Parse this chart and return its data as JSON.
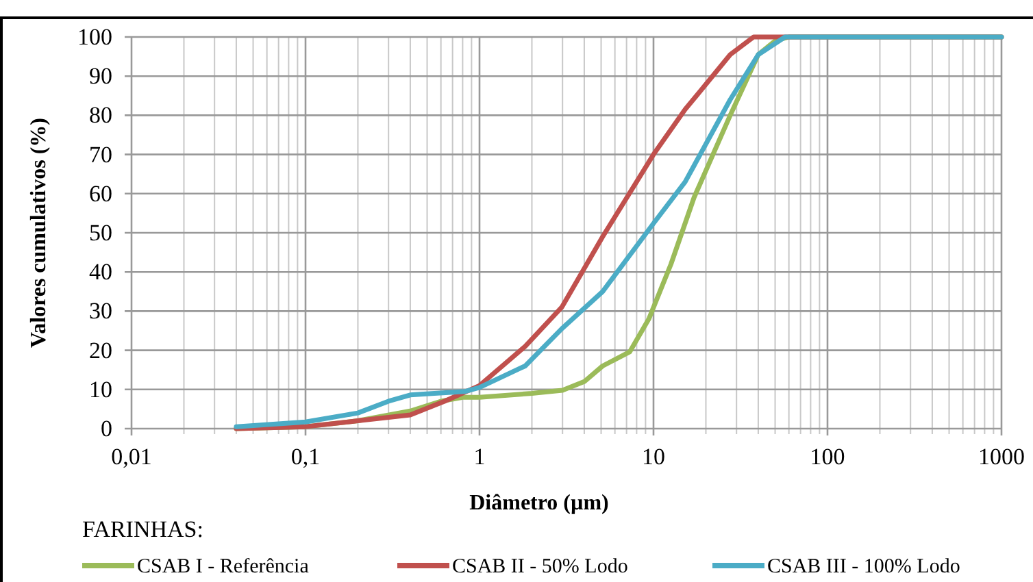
{
  "chart_data": {
    "type": "line",
    "xlabel": "Diâmetro (µm)",
    "ylabel": "Valores cumulativos (%)",
    "legend_title": "FARINHAS:",
    "log": "x",
    "grid": true,
    "legend": "bottom",
    "marker": "none",
    "line_style": "solid",
    "xlim": [
      0.01,
      1000
    ],
    "ylim": [
      0,
      100
    ],
    "xticks": [
      {
        "value": 0.01,
        "label": "0,01"
      },
      {
        "value": 0.1,
        "label": "0,1"
      },
      1,
      10,
      100,
      1000
    ],
    "yticks": [
      0,
      10,
      20,
      30,
      40,
      50,
      60,
      70,
      80,
      90,
      100
    ],
    "series": [
      {
        "name": "CSAB I - Referência",
        "color": "#9bbb59",
        "x": [
          0.04,
          0.1,
          0.2,
          0.4,
          0.6,
          0.8,
          1,
          2,
          3,
          4,
          5.1,
          7.3,
          9.4,
          12.6,
          17.1,
          27.6,
          40,
          50,
          60,
          100,
          1000
        ],
        "values": [
          0,
          0.5,
          2,
          4.5,
          7,
          8,
          8,
          9,
          9.8,
          12,
          16,
          19.6,
          28,
          42,
          59,
          80,
          95.5,
          99,
          100,
          100,
          100
        ]
      },
      {
        "name": "CSAB II - 50% Lodo",
        "color": "#c0504d",
        "x": [
          0.04,
          0.1,
          0.2,
          0.4,
          0.63,
          1,
          1.83,
          2.97,
          5.1,
          10,
          15.2,
          20.5,
          27.6,
          37.6,
          50,
          100,
          1000
        ],
        "values": [
          0,
          0.5,
          2,
          3.5,
          7,
          11,
          21,
          31,
          49,
          70,
          81.5,
          88.5,
          95.5,
          100,
          100,
          100,
          100
        ]
      },
      {
        "name": "CSAB III - 100% Lodo",
        "color": "#4bacc6",
        "x": [
          0.04,
          0.1,
          0.2,
          0.3,
          0.4,
          0.55,
          0.83,
          1,
          1.83,
          2.97,
          5.1,
          10,
          15.2,
          27.6,
          40,
          57,
          100,
          1000
        ],
        "values": [
          0.5,
          1.7,
          4,
          7,
          8.6,
          9,
          9.5,
          10.5,
          16,
          25.5,
          35,
          52.4,
          63,
          84,
          95.5,
          100,
          100,
          100
        ]
      }
    ]
  }
}
